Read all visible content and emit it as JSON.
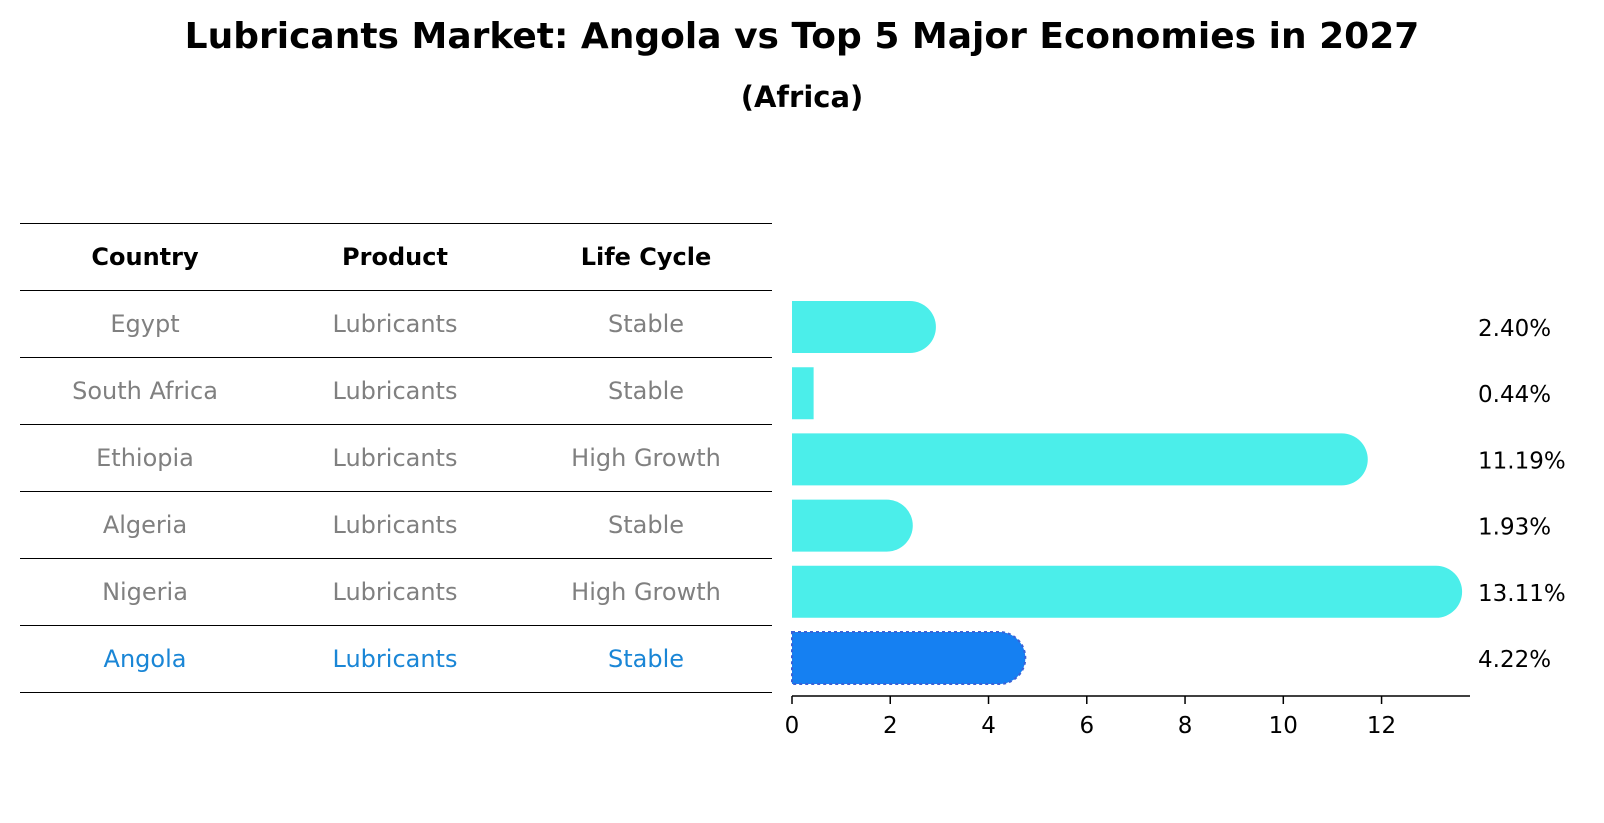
{
  "title": "Lubricants Market: Angola vs Top 5 Major Economies in 2027",
  "subtitle": "(Africa)",
  "table": {
    "headers": [
      "Country",
      "Product",
      "Life Cycle"
    ],
    "rows": [
      {
        "country": "Egypt",
        "product": "Lubricants",
        "life_cycle": "Stable"
      },
      {
        "country": "South Africa",
        "product": "Lubricants",
        "life_cycle": "Stable"
      },
      {
        "country": "Ethiopia",
        "product": "Lubricants",
        "life_cycle": "High Growth"
      },
      {
        "country": "Algeria",
        "product": "Lubricants",
        "life_cycle": "Stable"
      },
      {
        "country": "Nigeria",
        "product": "Lubricants",
        "life_cycle": "High Growth"
      },
      {
        "country": "Angola",
        "product": "Lubricants",
        "life_cycle": "Stable"
      }
    ]
  },
  "chart_data": {
    "type": "bar",
    "orientation": "horizontal",
    "title": "Lubricants Market: Angola vs Top 5 Major Economies in 2027",
    "subtitle": "(Africa)",
    "categories": [
      "Egypt",
      "South Africa",
      "Ethiopia",
      "Algeria",
      "Nigeria",
      "Angola"
    ],
    "values": [
      2.4,
      0.44,
      11.19,
      1.93,
      13.11,
      4.22
    ],
    "value_labels": [
      "2.40%",
      "0.44%",
      "11.19%",
      "1.93%",
      "13.11%",
      "4.22%"
    ],
    "highlight": "Angola",
    "xlim": [
      0,
      13.8
    ],
    "xticks": [
      0,
      2,
      4,
      6,
      8,
      10,
      12
    ],
    "xlabel": "",
    "ylabel": "",
    "grid": false,
    "colors": {
      "default": "#4beeea",
      "highlight": "#1580f2",
      "highlight_border": "#3a62d6"
    }
  },
  "colors": {
    "muted_text": "#808080",
    "highlight_text": "#1a86d6"
  }
}
